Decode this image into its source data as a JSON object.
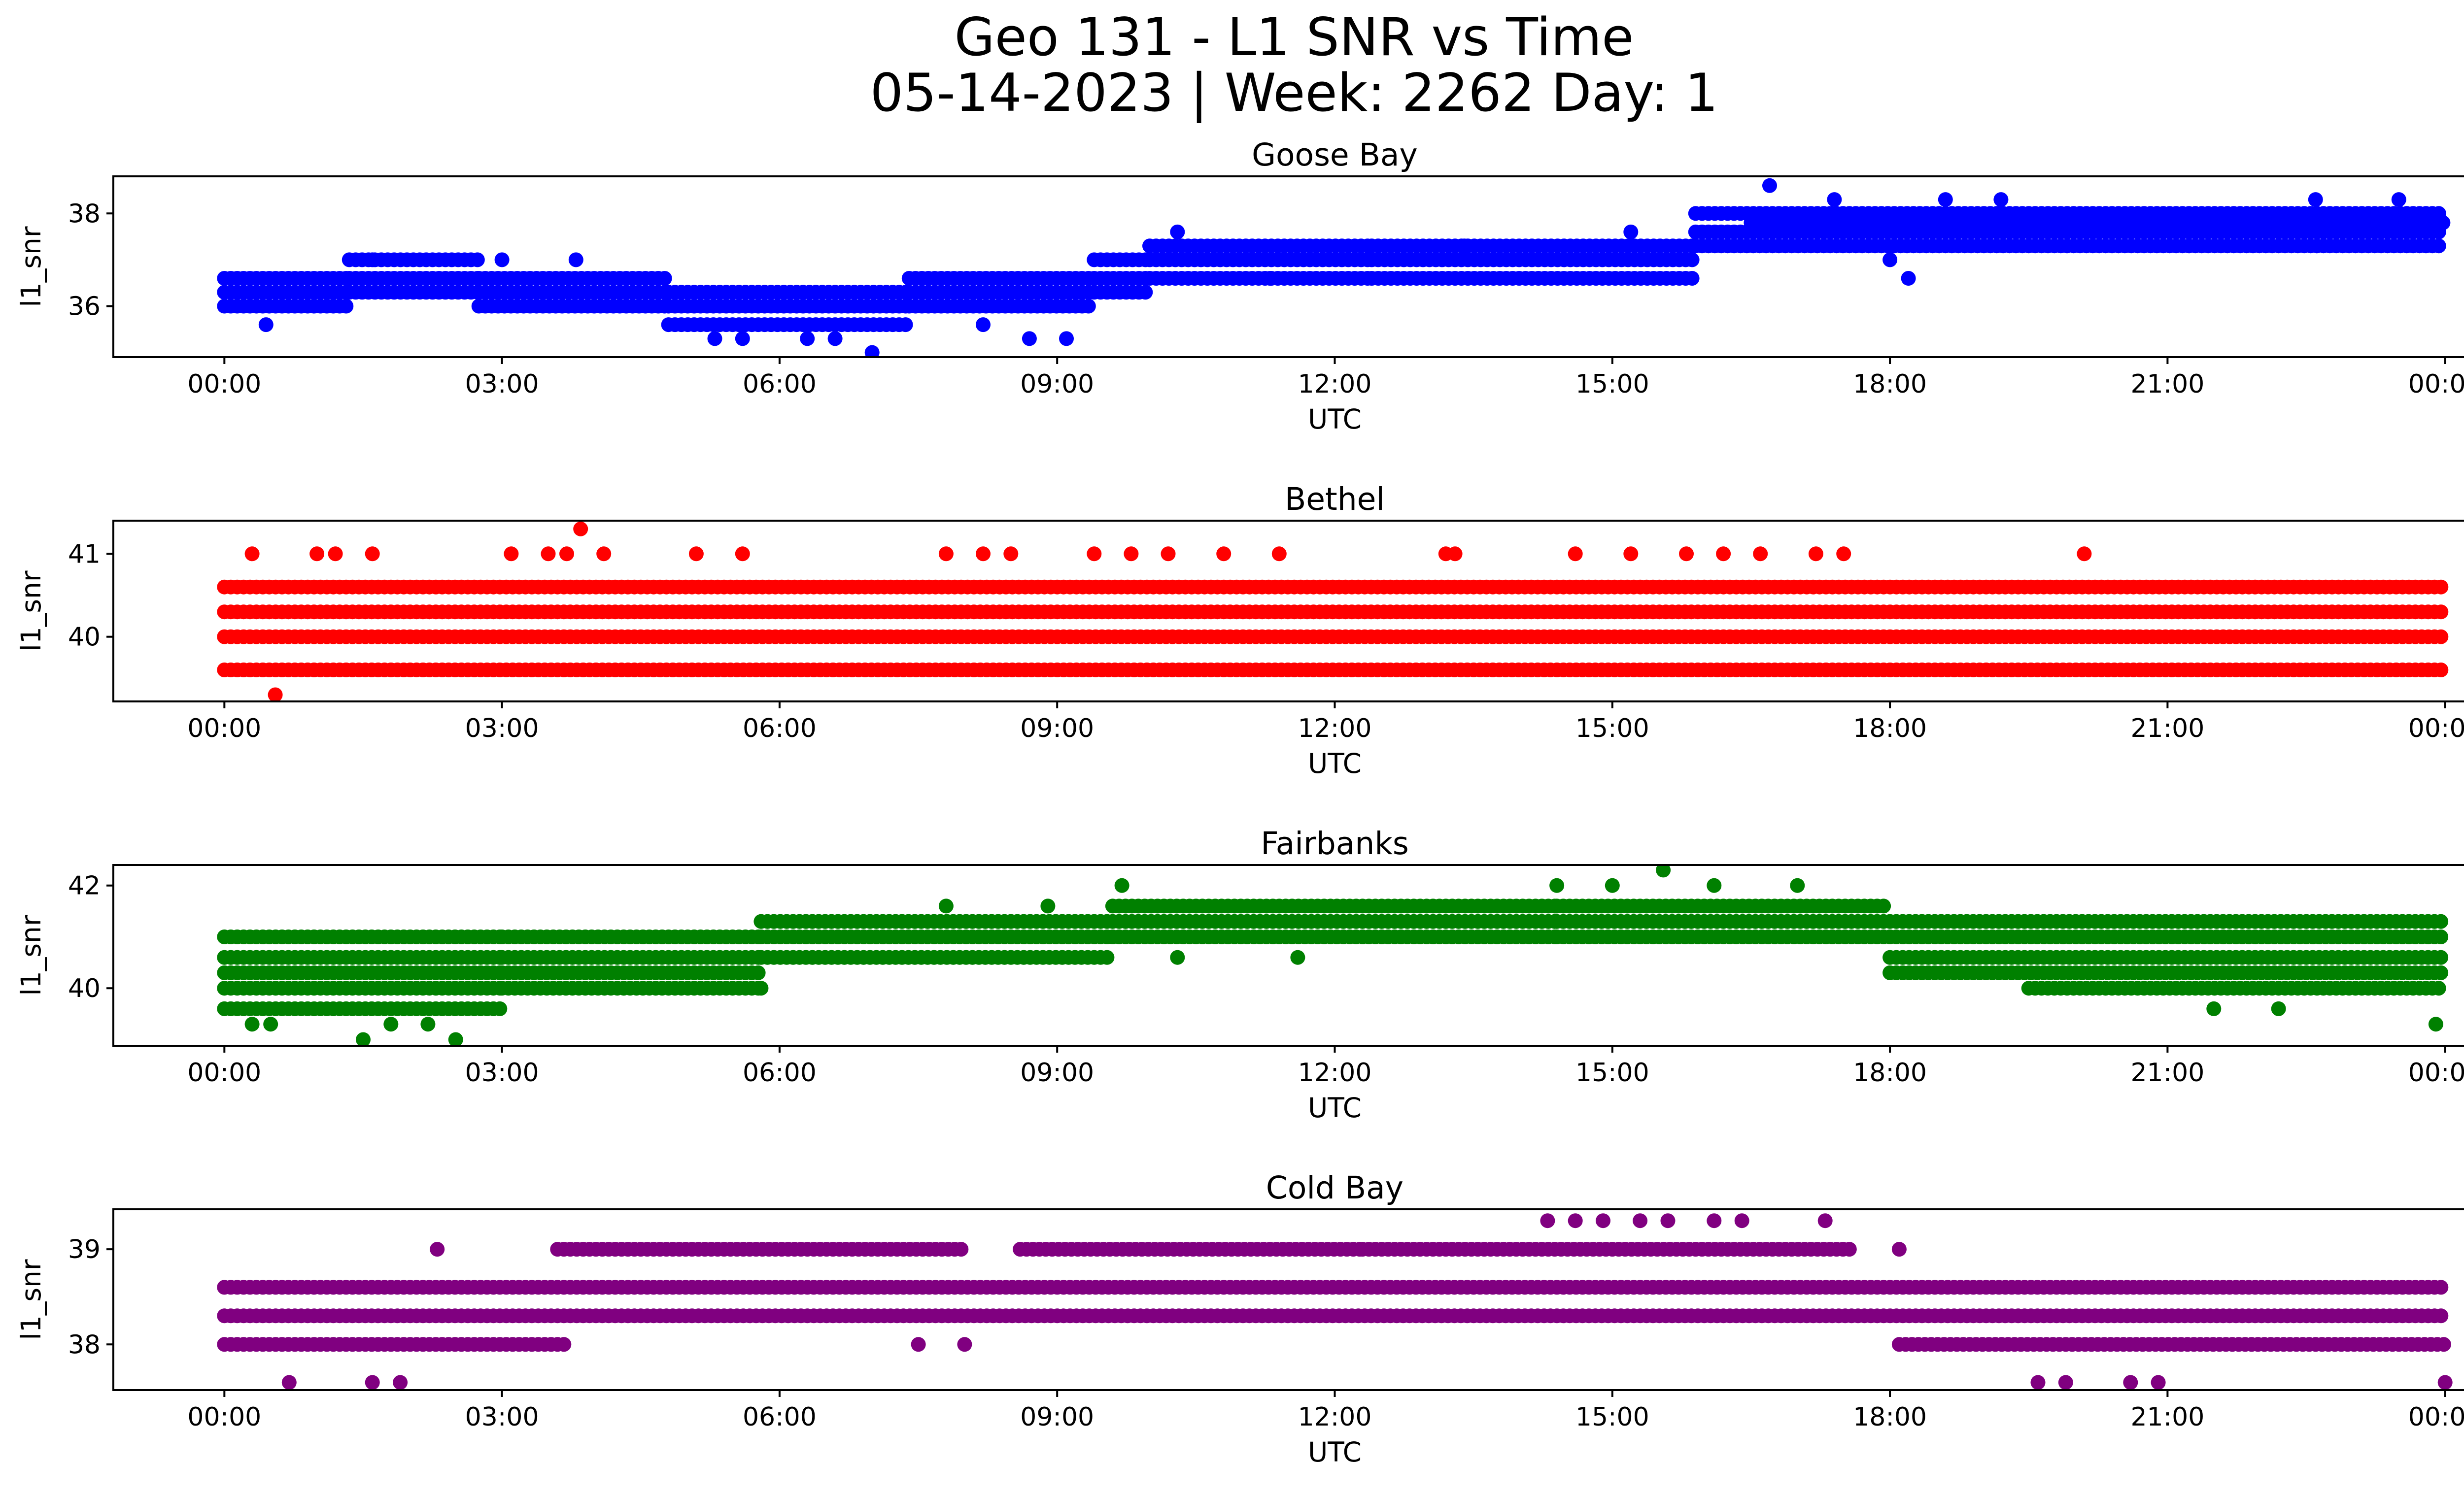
{
  "figure": {
    "title_line1": "Geo 131 - L1 SNR vs Time",
    "title_line2": "05-14-2023 | Week: 2262 Day: 1"
  },
  "chart_data": [
    {
      "type": "scatter",
      "title": "Goose Bay",
      "xlabel": "UTC",
      "ylabel": "l1_snr",
      "color": "#0000ff",
      "x_ticks": [
        "00:00",
        "03:00",
        "06:00",
        "09:00",
        "12:00",
        "15:00",
        "18:00",
        "21:00",
        "00:00"
      ],
      "y_ticks": [
        36,
        38
      ],
      "xlim_hours": [
        -1.2,
        25.2
      ],
      "ylim": [
        34.9,
        38.8
      ],
      "levels": [
        35.0,
        35.3,
        35.6,
        36.0,
        36.3,
        36.6,
        37.0,
        37.3,
        37.6,
        38.0,
        38.3,
        38.6
      ],
      "segments": [
        [
          0,
          1.35,
          36.3
        ],
        [
          0,
          1.35,
          36.0
        ],
        [
          0,
          1.35,
          36.6
        ],
        [
          1.35,
          2.75,
          36.6
        ],
        [
          1.35,
          2.75,
          37.0
        ],
        [
          1.35,
          2.75,
          36.3
        ],
        [
          2.75,
          4.8,
          36.6
        ],
        [
          2.75,
          4.8,
          36.3
        ],
        [
          2.75,
          4.8,
          36.0
        ],
        [
          4.8,
          7.4,
          36.3
        ],
        [
          4.8,
          7.4,
          36.0
        ],
        [
          4.8,
          7.4,
          35.6
        ],
        [
          7.4,
          9.4,
          36.3
        ],
        [
          7.4,
          9.4,
          36.0
        ],
        [
          7.4,
          9.4,
          36.6
        ],
        [
          9.4,
          10.0,
          36.3
        ],
        [
          9.4,
          10.0,
          36.6
        ],
        [
          9.4,
          10.0,
          37.0
        ],
        [
          10.0,
          12.4,
          37.0
        ],
        [
          10.0,
          12.4,
          36.6
        ],
        [
          10.0,
          12.4,
          37.3
        ],
        [
          12.4,
          15.9,
          37.0
        ],
        [
          12.4,
          15.9,
          36.6
        ],
        [
          12.4,
          15.9,
          37.3
        ],
        [
          15.9,
          24.0,
          37.6
        ],
        [
          15.9,
          24.0,
          37.3
        ],
        [
          15.9,
          24.0,
          38.0
        ],
        [
          16.5,
          24.0,
          37.8
        ]
      ],
      "points": [
        [
          0.45,
          35.6
        ],
        [
          5.3,
          35.3
        ],
        [
          5.6,
          35.3
        ],
        [
          6.3,
          35.3
        ],
        [
          6.6,
          35.3
        ],
        [
          7.0,
          35.0
        ],
        [
          8.7,
          35.3
        ],
        [
          9.1,
          35.3
        ],
        [
          3.8,
          37.0
        ],
        [
          3.0,
          37.0
        ],
        [
          1.6,
          37.0
        ],
        [
          13.4,
          37.3
        ],
        [
          11.3,
          36.6
        ],
        [
          16.7,
          38.6
        ],
        [
          17.4,
          38.3
        ],
        [
          18.6,
          38.3
        ],
        [
          19.2,
          38.3
        ],
        [
          22.6,
          38.3
        ],
        [
          23.5,
          38.3
        ],
        [
          18.2,
          36.6
        ],
        [
          18.0,
          37.0
        ],
        [
          15.2,
          37.6
        ],
        [
          10.3,
          37.6
        ],
        [
          8.2,
          35.6
        ]
      ]
    },
    {
      "type": "scatter",
      "title": "Bethel",
      "xlabel": "UTC",
      "ylabel": "l1_snr",
      "color": "#ff0000",
      "x_ticks": [
        "00:00",
        "03:00",
        "06:00",
        "09:00",
        "12:00",
        "15:00",
        "18:00",
        "21:00",
        "00:00"
      ],
      "y_ticks": [
        40,
        41
      ],
      "xlim_hours": [
        -1.2,
        25.2
      ],
      "ylim": [
        39.22,
        41.4
      ],
      "segments": [
        [
          0,
          24.0,
          40.3
        ],
        [
          0,
          24.0,
          40.6
        ],
        [
          0,
          24.0,
          40.0
        ],
        [
          0,
          24.0,
          39.6
        ]
      ],
      "points": [
        [
          0.3,
          41.0
        ],
        [
          1.0,
          41.0
        ],
        [
          1.2,
          41.0
        ],
        [
          1.6,
          41.0
        ],
        [
          3.1,
          41.0
        ],
        [
          3.5,
          41.0
        ],
        [
          3.7,
          41.0
        ],
        [
          3.85,
          41.3
        ],
        [
          4.1,
          41.0
        ],
        [
          5.1,
          41.0
        ],
        [
          5.6,
          41.0
        ],
        [
          7.8,
          41.0
        ],
        [
          8.2,
          41.0
        ],
        [
          8.5,
          41.0
        ],
        [
          9.4,
          41.0
        ],
        [
          9.8,
          41.0
        ],
        [
          10.2,
          41.0
        ],
        [
          10.8,
          41.0
        ],
        [
          11.4,
          41.0
        ],
        [
          13.2,
          41.0
        ],
        [
          13.3,
          41.0
        ],
        [
          14.6,
          41.0
        ],
        [
          15.2,
          41.0
        ],
        [
          15.8,
          41.0
        ],
        [
          16.2,
          41.0
        ],
        [
          16.6,
          41.0
        ],
        [
          17.2,
          41.0
        ],
        [
          17.5,
          41.0
        ],
        [
          20.1,
          41.0
        ],
        [
          0.55,
          39.3
        ]
      ]
    },
    {
      "type": "scatter",
      "title": "Fairbanks",
      "xlabel": "UTC",
      "ylabel": "l1_snr",
      "color": "#008000",
      "x_ticks": [
        "00:00",
        "03:00",
        "06:00",
        "09:00",
        "12:00",
        "15:00",
        "18:00",
        "21:00",
        "00:00"
      ],
      "y_ticks": [
        40,
        42
      ],
      "xlim_hours": [
        -1.2,
        25.2
      ],
      "ylim": [
        38.88,
        42.4
      ],
      "segments": [
        [
          0,
          3.0,
          40.3
        ],
        [
          0,
          3.0,
          40.0
        ],
        [
          0,
          3.0,
          40.6
        ],
        [
          0,
          3.0,
          39.6
        ],
        [
          0,
          3.0,
          41.0
        ],
        [
          3.0,
          5.8,
          40.6
        ],
        [
          3.0,
          5.8,
          40.3
        ],
        [
          3.0,
          5.8,
          41.0
        ],
        [
          3.0,
          5.8,
          40.0
        ],
        [
          5.8,
          9.6,
          41.0
        ],
        [
          5.8,
          9.6,
          40.6
        ],
        [
          5.8,
          9.6,
          41.3
        ],
        [
          9.6,
          14.4,
          41.3
        ],
        [
          9.6,
          14.4,
          41.0
        ],
        [
          9.6,
          14.4,
          41.6
        ],
        [
          14.4,
          18.0,
          41.6
        ],
        [
          14.4,
          18.0,
          41.3
        ],
        [
          14.4,
          18.0,
          41.0
        ],
        [
          18.0,
          24.0,
          41.0
        ],
        [
          18.0,
          24.0,
          40.6
        ],
        [
          18.0,
          24.0,
          40.3
        ],
        [
          18.0,
          24.0,
          41.3
        ],
        [
          19.5,
          24.0,
          40.0
        ]
      ],
      "points": [
        [
          0.3,
          39.3
        ],
        [
          0.5,
          39.3
        ],
        [
          1.5,
          39.0
        ],
        [
          1.8,
          39.3
        ],
        [
          2.2,
          39.3
        ],
        [
          2.5,
          39.0
        ],
        [
          5.8,
          40.0
        ],
        [
          9.7,
          42.0
        ],
        [
          14.4,
          42.0
        ],
        [
          15.0,
          42.0
        ],
        [
          15.55,
          42.3
        ],
        [
          16.1,
          42.0
        ],
        [
          17.0,
          42.0
        ],
        [
          8.9,
          41.6
        ],
        [
          7.8,
          41.6
        ],
        [
          21.5,
          39.6
        ],
        [
          22.2,
          39.6
        ],
        [
          23.9,
          39.3
        ],
        [
          10.3,
          40.6
        ],
        [
          11.6,
          40.6
        ]
      ]
    },
    {
      "type": "scatter",
      "title": "Cold Bay",
      "xlabel": "UTC",
      "ylabel": "l1_snr",
      "color": "#800080",
      "x_ticks": [
        "00:00",
        "03:00",
        "06:00",
        "09:00",
        "12:00",
        "15:00",
        "18:00",
        "21:00",
        "00:00"
      ],
      "y_ticks": [
        38,
        39
      ],
      "xlim_hours": [
        -1.2,
        25.2
      ],
      "ylim": [
        37.52,
        39.42
      ],
      "segments": [
        [
          0,
          24.0,
          38.6
        ],
        [
          0,
          24.0,
          38.3
        ],
        [
          0,
          3.7,
          38.0
        ],
        [
          18.1,
          24.0,
          38.0
        ],
        [
          3.6,
          8.0,
          39.0
        ],
        [
          8.6,
          12.3,
          39.0
        ],
        [
          12.3,
          17.6,
          39.0
        ]
      ],
      "points": [
        [
          0.7,
          37.6
        ],
        [
          1.6,
          37.6
        ],
        [
          1.9,
          37.6
        ],
        [
          2.3,
          39.0
        ],
        [
          7.5,
          38.0
        ],
        [
          8.0,
          38.0
        ],
        [
          14.3,
          39.3
        ],
        [
          14.6,
          39.3
        ],
        [
          14.9,
          39.3
        ],
        [
          15.3,
          39.3
        ],
        [
          15.6,
          39.3
        ],
        [
          16.1,
          39.3
        ],
        [
          16.4,
          39.3
        ],
        [
          17.3,
          39.3
        ],
        [
          18.1,
          39.0
        ],
        [
          19.6,
          37.6
        ],
        [
          19.9,
          37.6
        ],
        [
          20.6,
          37.6
        ],
        [
          20.9,
          37.6
        ],
        [
          24.0,
          37.6
        ]
      ]
    }
  ]
}
